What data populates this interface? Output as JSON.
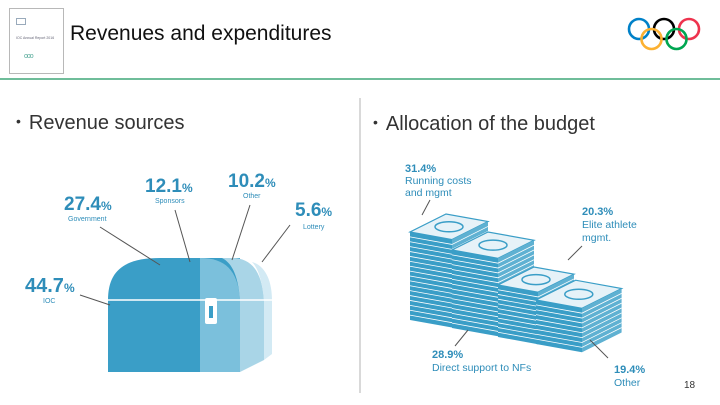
{
  "header": {
    "title": "Revenues and expenditures",
    "thumbnail_text": "IOC Annual Report 2016",
    "page_number": "18",
    "accent_color": "#6fbd9a",
    "ring_colors": [
      "#0081c8",
      "#fcb131",
      "#000000",
      "#00a651",
      "#ee334e"
    ]
  },
  "left": {
    "bullet": "Revenue sources",
    "items": [
      {
        "pct": "44.7",
        "sign": "%",
        "label": "IOC"
      },
      {
        "pct": "27.4",
        "sign": "%",
        "label": "Government"
      },
      {
        "pct": "12.1",
        "sign": "%",
        "label": "Sponsors"
      },
      {
        "pct": "10.2",
        "sign": "%",
        "label": "Other"
      },
      {
        "pct": "5.6",
        "sign": "%",
        "label": "Lottery"
      }
    ],
    "chest_colors": [
      "#3a9ec7",
      "#7bc0dc",
      "#a9d5e7",
      "#d3eaf4"
    ]
  },
  "right": {
    "bullet": "Allocation of the budget",
    "items": [
      {
        "pct": "31.4%",
        "label_lines": [
          "Running costs",
          "and mgmt"
        ]
      },
      {
        "pct": "20.3%",
        "label_lines": [
          "Elite athlete",
          "mgmt."
        ]
      },
      {
        "pct": "28.9%",
        "label_lines": [
          "Direct support to NFs"
        ]
      },
      {
        "pct": "19.4%",
        "label_lines": [
          "Other"
        ]
      }
    ],
    "stack_color": "#3a9ec7"
  }
}
